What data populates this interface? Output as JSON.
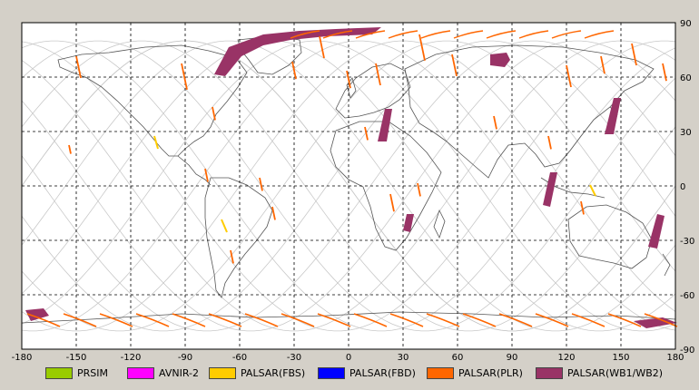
{
  "map": {
    "x_ticks": [
      "-180",
      "-150",
      "-120",
      "-90",
      "-60",
      "-30",
      "0",
      "30",
      "60",
      "90",
      "120",
      "150",
      "180"
    ],
    "y_ticks": [
      "90",
      "60",
      "30",
      "0",
      "-30",
      "-60",
      "-90"
    ],
    "x_range": [
      -180,
      180
    ],
    "y_range": [
      -90,
      90
    ],
    "grid": "dashed"
  },
  "legend": {
    "items": [
      {
        "label": "PRSIM",
        "color": "#99cc00"
      },
      {
        "label": "AVNIR-2",
        "color": "#ff00ff"
      },
      {
        "label": "PALSAR(FBS)",
        "color": "#ffcc00"
      },
      {
        "label": "PALSAR(FBD)",
        "color": "#0000ff"
      },
      {
        "label": "PALSAR(PLR)",
        "color": "#ff6600"
      },
      {
        "label": "PALSAR(WB1/WB2)",
        "color": "#993366"
      }
    ]
  },
  "swaths": {
    "wb_color": "#993366",
    "plr_color": "#ff6600",
    "fbs_color": "#ffcc00"
  }
}
